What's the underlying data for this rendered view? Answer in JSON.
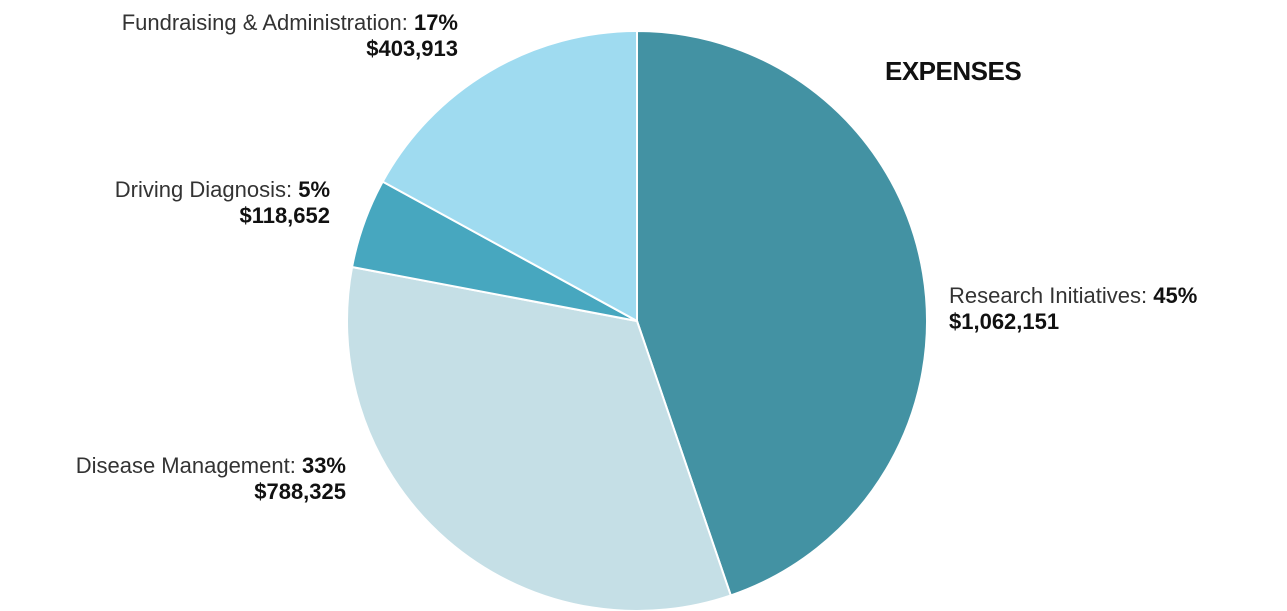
{
  "chart_data": {
    "type": "pie",
    "title": "EXPENSES",
    "slices": [
      {
        "label": "Research Initiatives:",
        "percent_text": "45%",
        "amount_text": "$1,062,151",
        "value": 1062151,
        "color": "#4392a3"
      },
      {
        "label": "Disease Management:",
        "percent_text": "33%",
        "amount_text": "$788,325",
        "value": 788325,
        "color": "#c5dfe6"
      },
      {
        "label": "Driving Diagnosis:",
        "percent_text": "5%",
        "amount_text": "$118,652",
        "value": 118652,
        "color": "#47a7bf"
      },
      {
        "label": "Fundraising & Administration:",
        "percent_text": "17%",
        "amount_text": "$403,913",
        "value": 403913,
        "color": "#9fdbf0"
      }
    ]
  }
}
